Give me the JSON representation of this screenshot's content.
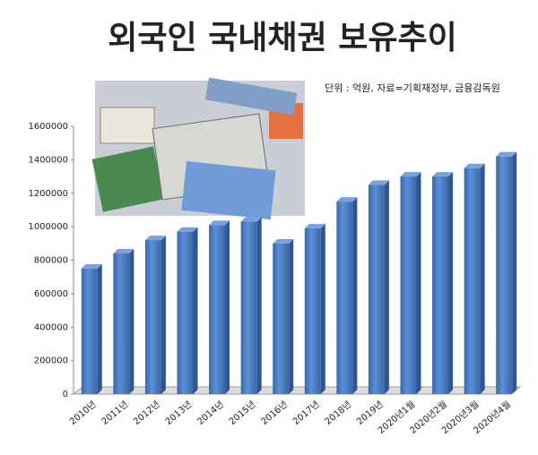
{
  "chart_data": {
    "type": "bar",
    "title": "외국인 국내채권 보유추이",
    "subtitle": "단위 : 억원, 자료=기획재정부, 금융감독원",
    "categories": [
      "2010년",
      "2011년",
      "2012년",
      "2013년",
      "2014년",
      "2015년",
      "2016년",
      "2017년",
      "2018년",
      "2019년",
      "2020년1월",
      "2020년2월",
      "2020년3월",
      "2020년4월"
    ],
    "values": [
      750000,
      840000,
      920000,
      970000,
      1010000,
      1030000,
      900000,
      990000,
      1150000,
      1250000,
      1300000,
      1300000,
      1350000,
      1420000
    ],
    "color": "#4a7cc2",
    "ylim": [
      0,
      1600000
    ],
    "yticks": [
      0,
      200000,
      400000,
      600000,
      800000,
      1000000,
      1200000,
      1400000,
      1600000
    ],
    "grid": false
  }
}
